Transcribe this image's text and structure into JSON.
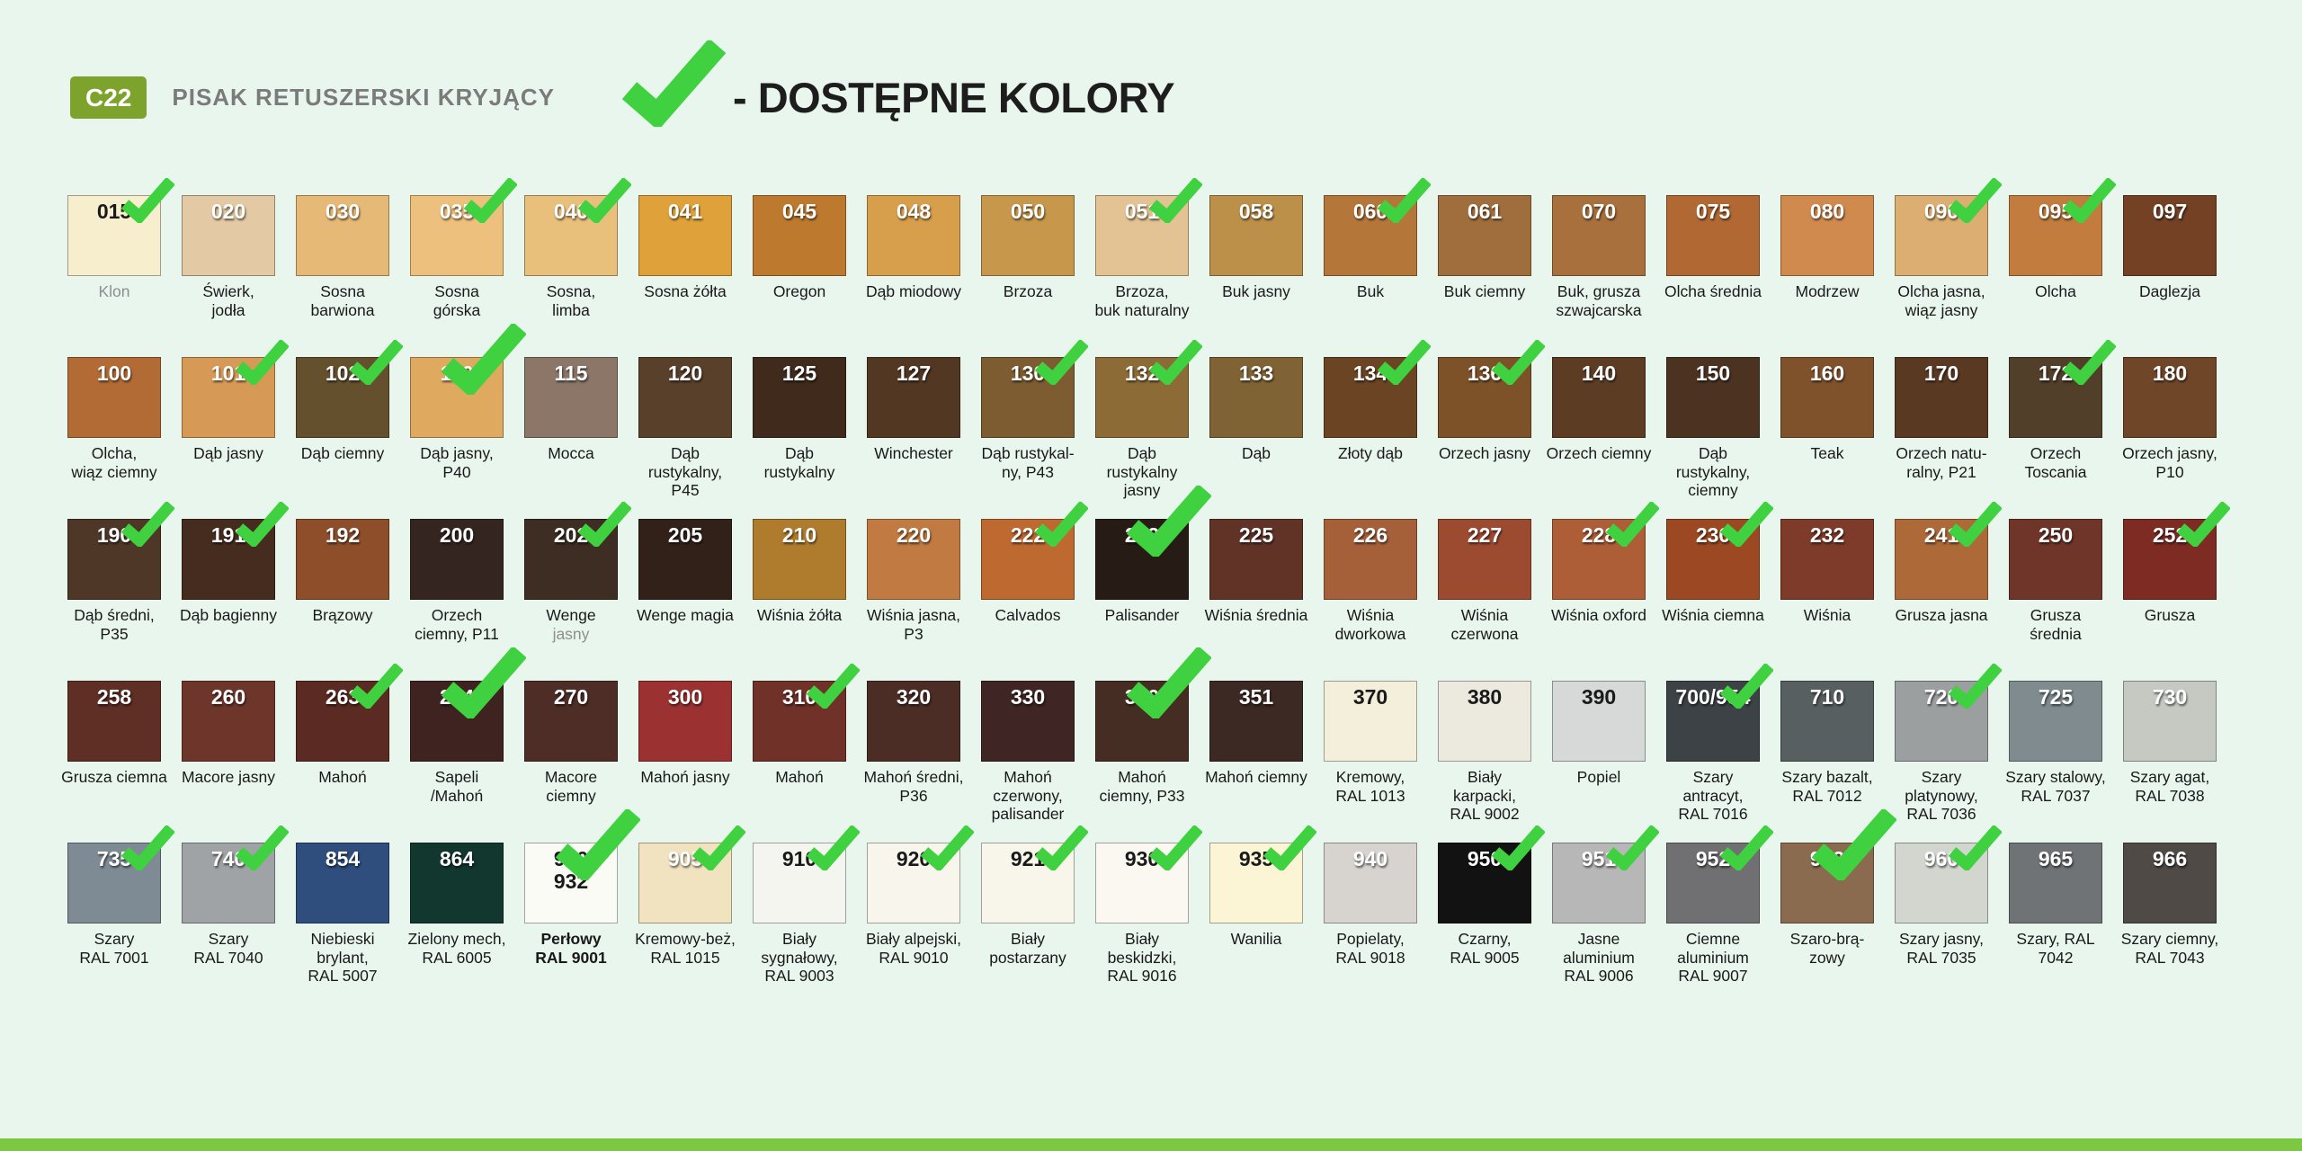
{
  "colors": {
    "page_bg": "#E9F6EE",
    "badge_green": "#7EA32C",
    "check_green": "#3FD13F",
    "footer_green": "#7CC843",
    "title_gray": "#7B7B7B",
    "text_dark": "#1D1D1D"
  },
  "header": {
    "badge": "C22",
    "title": "PISAK RETUSZERSKI KRYJĄCY",
    "legend_text": "- DOSTĘPNE KOLORY"
  },
  "grid": {
    "rows": [
      [
        {
          "code": "015",
          "name": "Klon",
          "color": "#F7EECD",
          "text": "dark",
          "check": true,
          "muted": true
        },
        {
          "code": "020",
          "name": "Świerk,\njodła",
          "color": "#E3CAA4"
        },
        {
          "code": "030",
          "name": "Sosna\nbarwiona",
          "color": "#E7B976"
        },
        {
          "code": "035",
          "name": "Sosna\ngórska",
          "color": "#EDC17D",
          "check": true
        },
        {
          "code": "040",
          "name": "Sosna,\nlimba",
          "color": "#E8BF7B",
          "check": true
        },
        {
          "code": "041",
          "name": "Sosna żółta",
          "color": "#DFA23A"
        },
        {
          "code": "045",
          "name": "Oregon",
          "color": "#BD7A2F"
        },
        {
          "code": "048",
          "name": "Dąb miodowy",
          "color": "#D79E4C"
        },
        {
          "code": "050",
          "name": "Brzoza",
          "color": "#C7984B"
        },
        {
          "code": "051",
          "name": "Brzoza,\nbuk naturalny",
          "color": "#E3C393",
          "check": true
        },
        {
          "code": "058",
          "name": "Buk jasny",
          "color": "#BC9049"
        },
        {
          "code": "060",
          "name": "Buk",
          "color": "#B5763A",
          "check": true
        },
        {
          "code": "061",
          "name": "Buk ciemny",
          "color": "#A06E3D"
        },
        {
          "code": "070",
          "name": "Buk, grusza\nszwajcarska",
          "color": "#A8703D"
        },
        {
          "code": "075",
          "name": "Olcha średnia",
          "color": "#B16833"
        },
        {
          "code": "080",
          "name": "Modrzew",
          "color": "#D18A4E"
        },
        {
          "code": "090",
          "name": "Olcha jasna,\nwiąz jasny",
          "color": "#DCAE71",
          "check": true
        },
        {
          "code": "095",
          "name": "Olcha",
          "color": "#C17C3E",
          "check": true
        },
        {
          "code": "097",
          "name": "Daglezja",
          "color": "#744125"
        }
      ],
      [
        {
          "code": "100",
          "name": "Olcha,\nwiąz ciemny",
          "color": "#B26B34"
        },
        {
          "code": "101",
          "name": "Dąb jasny",
          "color": "#D79A56",
          "check": true
        },
        {
          "code": "102",
          "name": "Dąb ciemny",
          "color": "#64502C",
          "check": true
        },
        {
          "code": "110",
          "name": "Dąb jasny,\nP40",
          "color": "#E0A960",
          "check": "big"
        },
        {
          "code": "115",
          "name": "Mocca",
          "color": "#8B7668"
        },
        {
          "code": "120",
          "name": "Dąb\nrustykalny,\nP45",
          "color": "#59402A"
        },
        {
          "code": "125",
          "name": "Dąb\nrustykalny",
          "color": "#3F2A1B"
        },
        {
          "code": "127",
          "name": "Winchester",
          "color": "#523723"
        },
        {
          "code": "130",
          "name": "Dąb rustykal-\nny, P43",
          "color": "#7C5C30",
          "check": true
        },
        {
          "code": "132",
          "name": "Dąb\nrustykalny\njasny",
          "color": "#8C6B37",
          "check": true
        },
        {
          "code": "133",
          "name": "Dąb",
          "color": "#806335"
        },
        {
          "code": "134",
          "name": "Złoty dąb",
          "color": "#6B4523",
          "check": true
        },
        {
          "code": "136",
          "name": "Orzech jasny",
          "color": "#7E5228",
          "check": true
        },
        {
          "code": "140",
          "name": "Orzech ciemny",
          "color": "#5D3C24"
        },
        {
          "code": "150",
          "name": "Dąb\nrustykalny,\nciemny",
          "color": "#4C3221"
        },
        {
          "code": "160",
          "name": "Teak",
          "color": "#80522C"
        },
        {
          "code": "170",
          "name": "Orzech natu-\nralny, P21",
          "color": "#5A3923"
        },
        {
          "code": "172",
          "name": "Orzech\nToscania",
          "color": "#513F29",
          "check": true
        },
        {
          "code": "180",
          "name": "Orzech jasny,\nP10",
          "color": "#704629"
        }
      ],
      [
        {
          "code": "190",
          "name": "Dąb średni,\nP35",
          "color": "#4E3727",
          "check": true
        },
        {
          "code": "191",
          "name": "Dąb bagienny",
          "color": "#452C1E",
          "check": true
        },
        {
          "code": "192",
          "name": "Brązowy",
          "color": "#8E4E2A"
        },
        {
          "code": "200",
          "name": "Orzech\nciemny, P11",
          "color": "#352521"
        },
        {
          "code": "202",
          "name": "Wenge",
          "sub": "jasny",
          "color": "#3D2D23",
          "check": true
        },
        {
          "code": "205",
          "name": "Wenge magia",
          "color": "#322119"
        },
        {
          "code": "210",
          "name": "Wiśnia żółta",
          "color": "#AF7C2E"
        },
        {
          "code": "220",
          "name": "Wiśnia jasna,\nP3",
          "color": "#C17A41"
        },
        {
          "code": "222",
          "name": "Calvados",
          "color": "#BE6930",
          "check": true
        },
        {
          "code": "223",
          "name": "Palisander",
          "color": "#271C15",
          "check": "big"
        },
        {
          "code": "225",
          "name": "Wiśnia średnia",
          "color": "#613327"
        },
        {
          "code": "226",
          "name": "Wiśnia\ndworkowa",
          "color": "#A66039"
        },
        {
          "code": "227",
          "name": "Wiśnia\nczerwona",
          "color": "#9C4B31"
        },
        {
          "code": "228",
          "name": "Wiśnia oxford",
          "color": "#AE5E37",
          "check": true
        },
        {
          "code": "230",
          "name": "Wiśnia ciemna",
          "color": "#9C4923",
          "check": true
        },
        {
          "code": "232",
          "name": "Wiśnia",
          "color": "#7F3B29"
        },
        {
          "code": "241",
          "name": "Grusza jasna",
          "color": "#AE6939",
          "check": true
        },
        {
          "code": "250",
          "name": "Grusza\nśrednia",
          "color": "#6F3528"
        },
        {
          "code": "252",
          "name": "Grusza",
          "color": "#7D2B23",
          "check": true
        }
      ],
      [
        {
          "code": "258",
          "name": "Grusza ciemna",
          "color": "#5F2E25"
        },
        {
          "code": "260",
          "name": "Macore jasny",
          "color": "#6E362B"
        },
        {
          "code": "263",
          "name": "Mahoń",
          "color": "#5B2B23",
          "check": true
        },
        {
          "code": "264",
          "name": "Sapeli\n/Mahoń",
          "color": "#3F2321",
          "check": "big"
        },
        {
          "code": "270",
          "name": "Macore\nciemny",
          "color": "#4F2D27"
        },
        {
          "code": "300",
          "name": "Mahoń jasny",
          "color": "#9C3131"
        },
        {
          "code": "310",
          "name": "Mahoń",
          "color": "#6F3128",
          "check": true
        },
        {
          "code": "320",
          "name": "Mahoń średni,\nP36",
          "color": "#4B2D25"
        },
        {
          "code": "330",
          "name": "Mahoń\nczerwony,\npalisander",
          "color": "#3F2523"
        },
        {
          "code": "350",
          "name": "Mahoń\nciemny, P33",
          "color": "#462D23",
          "check": "big"
        },
        {
          "code": "351",
          "name": "Mahoń ciemny",
          "color": "#3D2923"
        },
        {
          "code": "370",
          "name": "Kremowy,\nRAL 1013",
          "color": "#F4EFDB",
          "text": "dark"
        },
        {
          "code": "380",
          "name": "Biały\nkarpacki,\nRAL 9002",
          "color": "#ECE9DE",
          "text": "dark"
        },
        {
          "code": "390",
          "name": "Popiel",
          "color": "#D6D9D8",
          "text": "dark"
        },
        {
          "code": "700/954",
          "name": "Szary\nantracyt,\nRAL 7016",
          "color": "#3C4245",
          "check": true
        },
        {
          "code": "710",
          "name": "Szary bazalt,\nRAL 7012",
          "color": "#585F61"
        },
        {
          "code": "720",
          "name": "Szary\nplatynowy,\nRAL 7036",
          "color": "#9B9FA0",
          "check": true
        },
        {
          "code": "725",
          "name": "Szary stalowy,\nRAL 7037",
          "color": "#7F8B8E"
        },
        {
          "code": "730",
          "name": "Szary agat,\nRAL 7038",
          "color": "#C6C9C2"
        }
      ],
      [
        {
          "code": "735",
          "name": "Szary\nRAL 7001",
          "color": "#7F8B94",
          "check": true
        },
        {
          "code": "740",
          "name": "Szary\nRAL 7040",
          "color": "#9FA3A6",
          "check": true
        },
        {
          "code": "854",
          "name": "Niebieski\nbrylant,\nRAL 5007",
          "color": "#2F4E7D"
        },
        {
          "code": "864",
          "name": "Zielony mech,\nRAL 6005",
          "color": "#12372F"
        },
        {
          "code": "900\n932",
          "name": "Perłowy\nRAL 9001",
          "color": "#FBFBF5",
          "text": "dark",
          "check": "big",
          "bold": true
        },
        {
          "code": "905",
          "name": "Kremowy-beż,\nRAL 1015",
          "color": "#F1E3C0",
          "check": true
        },
        {
          "code": "910",
          "name": "Biały\nsygnałowy,\nRAL 9003",
          "color": "#F5F5F0",
          "text": "dark",
          "check": true
        },
        {
          "code": "920",
          "name": "Biały alpejski,\nRAL 9010",
          "color": "#F7F5EC",
          "text": "dark",
          "check": true
        },
        {
          "code": "921",
          "name": "Biały\npostarzany",
          "color": "#F8F6EA",
          "text": "dark",
          "check": true
        },
        {
          "code": "930",
          "name": "Biały\nbeskidzki,\nRAL 9016",
          "color": "#FAF8F1",
          "text": "dark",
          "check": true
        },
        {
          "code": "935",
          "name": "Wanilia",
          "color": "#FBF5D6",
          "text": "dark",
          "check": true
        },
        {
          "code": "940",
          "name": "Popielaty,\nRAL 9018",
          "color": "#D7D4CF"
        },
        {
          "code": "950",
          "name": "Czarny,\nRAL 9005",
          "color": "#121212",
          "check": true
        },
        {
          "code": "951",
          "name": "Jasne\naluminium\nRAL 9006",
          "color": "#B7B7B7",
          "check": true
        },
        {
          "code": "952",
          "name": "Ciemne\naluminium\nRAL 9007",
          "color": "#707072",
          "check": true
        },
        {
          "code": "953",
          "name": "Szaro-brą-\nzowy",
          "color": "#8B6B4F",
          "check": "big"
        },
        {
          "code": "960",
          "name": "Szary jasny,\nRAL 7035",
          "color": "#D3D6CE",
          "check": true
        },
        {
          "code": "965",
          "name": "Szary, RAL\n7042",
          "color": "#6F7376"
        },
        {
          "code": "966",
          "name": "Szary ciemny,\nRAL 7043",
          "color": "#4F4A46"
        }
      ]
    ]
  }
}
